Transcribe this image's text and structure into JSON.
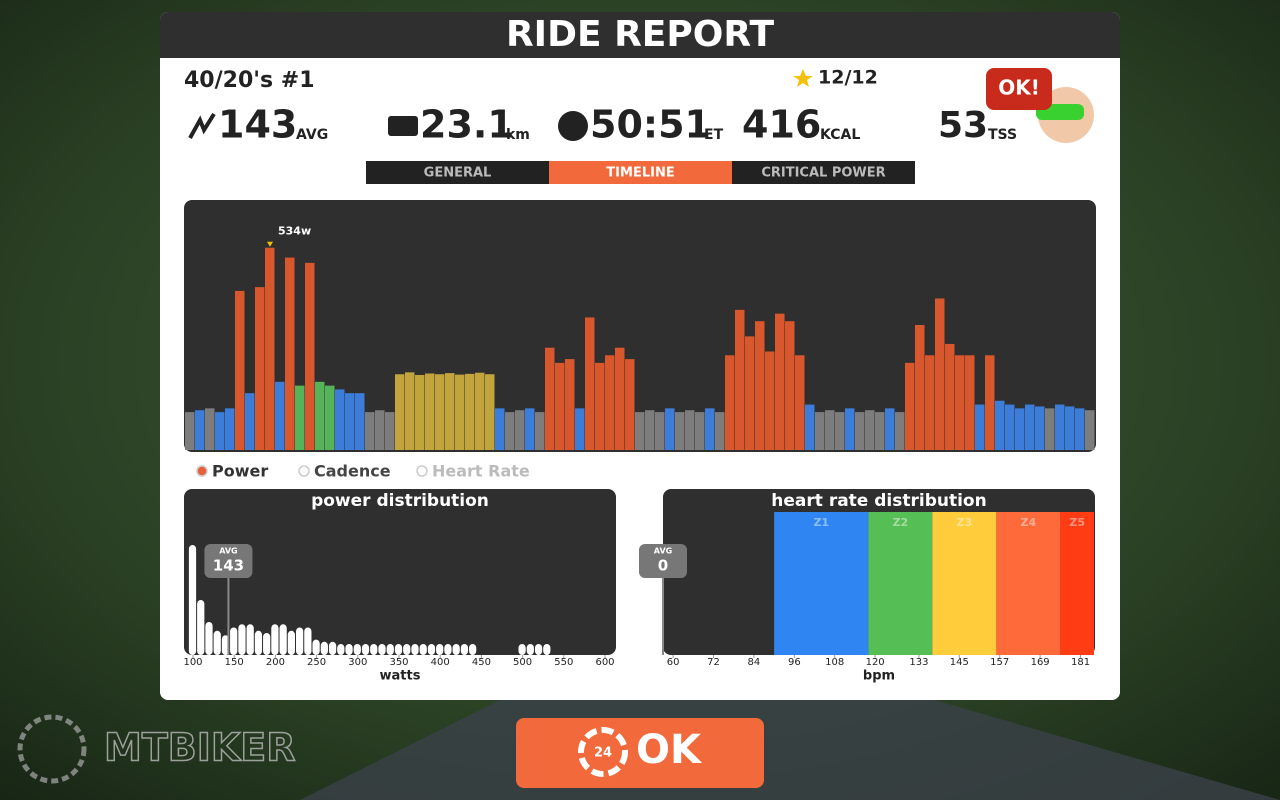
{
  "header": {
    "title": "RIDE REPORT"
  },
  "workout": {
    "name": "40/20's #1",
    "stars": "12/12"
  },
  "stats": {
    "power": {
      "value": "143",
      "unit": "AVG"
    },
    "distance": {
      "value": "23.1",
      "unit": "km"
    },
    "time": {
      "value": "50:51",
      "unit": "ET"
    },
    "calories": {
      "value": "416",
      "unit": "KCAL"
    },
    "tss": {
      "value": "53",
      "unit": "TSS"
    },
    "badge": "OK!"
  },
  "tabs": [
    "GENERAL",
    "TIMELINE",
    "CRITICAL POWER"
  ],
  "active_tab": 1,
  "timeline": {
    "peak_label": "534w",
    "ylim": [
      0,
      660
    ],
    "values": [
      100,
      105,
      110,
      100,
      110,
      420,
      150,
      430,
      534,
      180,
      508,
      170,
      494,
      180,
      170,
      160,
      150,
      150,
      100,
      105,
      100,
      200,
      205,
      198,
      202,
      200,
      203,
      199,
      201,
      204,
      200,
      110,
      100,
      105,
      110,
      100,
      270,
      230,
      240,
      110,
      350,
      230,
      250,
      270,
      240,
      100,
      105,
      100,
      110,
      100,
      105,
      100,
      110,
      100,
      250,
      370,
      300,
      340,
      260,
      360,
      340,
      250,
      120,
      100,
      105,
      100,
      110,
      100,
      105,
      100,
      110,
      100,
      230,
      330,
      250,
      400,
      280,
      250,
      250,
      120,
      250,
      130,
      120,
      110,
      120,
      115,
      110,
      120,
      115,
      110,
      105
    ],
    "colors": [
      "#7d7d7d",
      "#3b7dd8",
      "#7d7d7d",
      "#3b7dd8",
      "#3b7dd8",
      "#d9572c",
      "#3b7dd8",
      "#d9572c",
      "#d9572c",
      "#3b7dd8",
      "#d9572c",
      "#56b35a",
      "#d9572c",
      "#56b35a",
      "#56b35a",
      "#3b7dd8",
      "#3b7dd8",
      "#3b7dd8",
      "#7d7d7d",
      "#7d7d7d",
      "#7d7d7d",
      "#c2a43c",
      "#c2a43c",
      "#c2a43c",
      "#c2a43c",
      "#c2a43c",
      "#c2a43c",
      "#c2a43c",
      "#c2a43c",
      "#c2a43c",
      "#c2a43c",
      "#3b7dd8",
      "#7d7d7d",
      "#7d7d7d",
      "#3b7dd8",
      "#7d7d7d",
      "#d9572c",
      "#d9572c",
      "#d9572c",
      "#3b7dd8",
      "#d9572c",
      "#d9572c",
      "#d9572c",
      "#d9572c",
      "#d9572c",
      "#7d7d7d",
      "#7d7d7d",
      "#7d7d7d",
      "#3b7dd8",
      "#7d7d7d",
      "#7d7d7d",
      "#7d7d7d",
      "#3b7dd8",
      "#7d7d7d",
      "#d9572c",
      "#d9572c",
      "#d9572c",
      "#d9572c",
      "#d9572c",
      "#d9572c",
      "#d9572c",
      "#d9572c",
      "#3b7dd8",
      "#7d7d7d",
      "#7d7d7d",
      "#7d7d7d",
      "#3b7dd8",
      "#7d7d7d",
      "#7d7d7d",
      "#7d7d7d",
      "#3b7dd8",
      "#7d7d7d",
      "#d9572c",
      "#d9572c",
      "#d9572c",
      "#d9572c",
      "#d9572c",
      "#d9572c",
      "#d9572c",
      "#3b7dd8",
      "#d9572c",
      "#3b7dd8",
      "#3b7dd8",
      "#3b7dd8",
      "#3b7dd8",
      "#3b7dd8",
      "#7d7d7d",
      "#3b7dd8",
      "#3b7dd8",
      "#3b7dd8",
      "#7d7d7d"
    ]
  },
  "legend": [
    {
      "name": "Power",
      "color": "#e8603a"
    },
    {
      "name": "Cadence",
      "color": "#ffffff"
    },
    {
      "name": "Heart Rate",
      "color": "#ffffff"
    }
  ],
  "power_distribution": {
    "title": "power distribution",
    "x_label": "watts",
    "avg_label": "AVG",
    "avg": 143,
    "x": [
      100,
      110,
      120,
      130,
      140,
      150,
      160,
      170,
      180,
      190,
      200,
      210,
      220,
      230,
      240,
      250,
      260,
      270,
      280,
      290,
      300,
      310,
      320,
      330,
      340,
      350,
      360,
      370,
      380,
      390,
      400,
      410,
      420,
      430,
      440,
      450,
      460,
      470,
      480,
      490,
      500,
      510,
      520,
      530,
      540,
      550
    ],
    "values": [
      100,
      50,
      30,
      22,
      18,
      25,
      28,
      28,
      22,
      20,
      28,
      28,
      22,
      25,
      25,
      14,
      12,
      12,
      10,
      10,
      10,
      10,
      10,
      10,
      10,
      10,
      10,
      10,
      10,
      10,
      10,
      10,
      10,
      10,
      10,
      0,
      0,
      0,
      0,
      0,
      10,
      10,
      10,
      10,
      0,
      0
    ],
    "xlim": [
      100,
      600
    ],
    "ylim": [
      0,
      100
    ],
    "xticks": [
      100,
      150,
      200,
      250,
      300,
      350,
      400,
      450,
      500,
      550,
      600
    ],
    "color": "#ffffff"
  },
  "hr_distribution": {
    "title": "heart rate distribution",
    "x_label": "bpm",
    "avg_label": "AVG",
    "avg": 0,
    "xlim": [
      57,
      185
    ],
    "xticks": [
      60,
      72,
      84,
      96,
      108,
      120,
      133,
      145,
      157,
      169,
      181
    ],
    "zones": [
      {
        "name": "Z1",
        "from": 90,
        "to": 118,
        "color": "#2f86f2"
      },
      {
        "name": "Z2",
        "from": 118,
        "to": 137,
        "color": "#55bf55"
      },
      {
        "name": "Z3",
        "from": 137,
        "to": 156,
        "color": "#ffcc3c"
      },
      {
        "name": "Z4",
        "from": 156,
        "to": 175,
        "color": "#ff6a3a"
      },
      {
        "name": "Z5",
        "from": 175,
        "to": 185,
        "color": "#ff3c14"
      }
    ]
  },
  "button": {
    "label": "OK",
    "badge": "24"
  },
  "watermark": "MTBIKER"
}
